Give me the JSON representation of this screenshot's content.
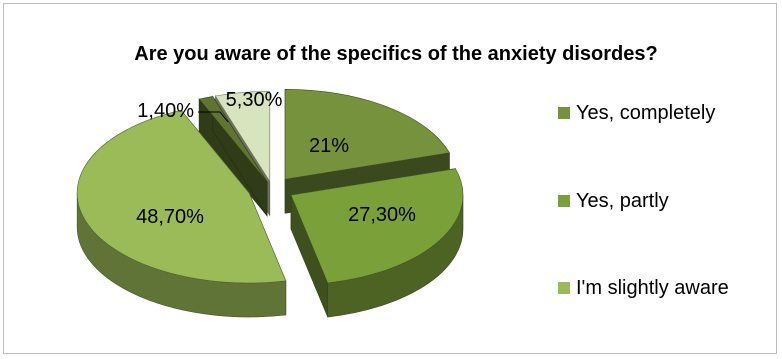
{
  "chart_data": {
    "type": "pie",
    "title": "Are you aware of the specifics of the anxiety disordes?",
    "slices": [
      {
        "label": "Yes, completely",
        "value": 21,
        "value_label": "21%",
        "in_legend": true,
        "color": "#76923c"
      },
      {
        "label": "Yes, partly",
        "value": 27.3,
        "value_label": "27,30%",
        "in_legend": true,
        "color": "#7aa03a"
      },
      {
        "label": "I'm slightly aware",
        "value": 48.7,
        "value_label": "48,70%",
        "in_legend": true,
        "color": "#9bbb59"
      },
      {
        "label": "",
        "value": 1.4,
        "value_label": "1,40%",
        "in_legend": false,
        "color": "#5f7530"
      },
      {
        "label": "",
        "value": 5.3,
        "value_label": "5,30%",
        "in_legend": false,
        "color": "#d7e4bd"
      }
    ],
    "legend_position": "right"
  }
}
